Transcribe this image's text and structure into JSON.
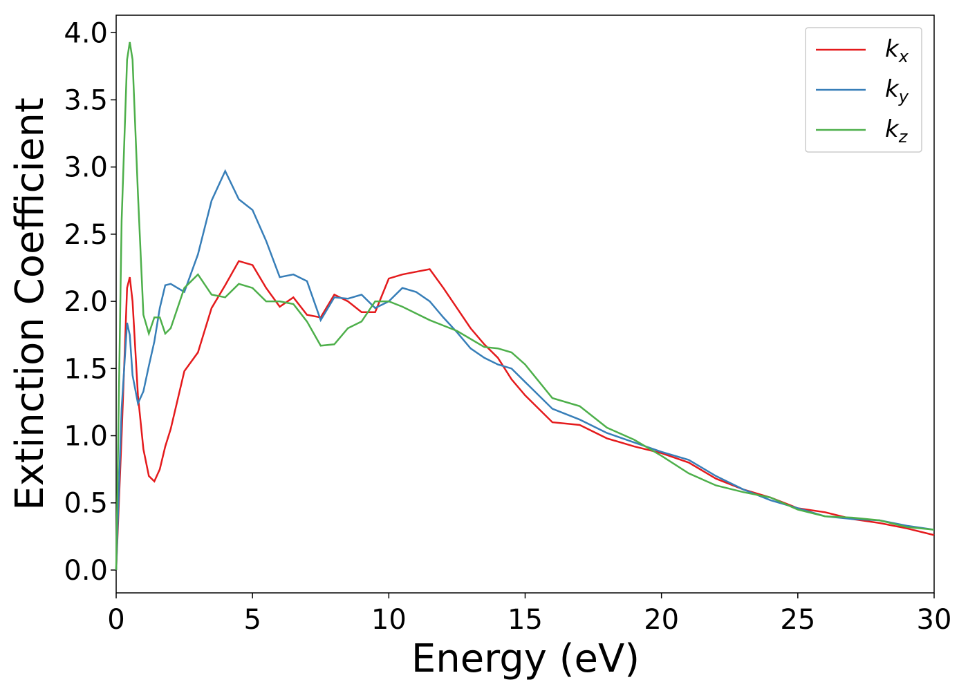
{
  "chart_data": {
    "type": "line",
    "xlabel": "Energy (eV)",
    "ylabel": "Extinction Coefficient",
    "x": [
      0,
      0.2,
      0.4,
      0.5,
      0.6,
      0.8,
      1,
      1.2,
      1.4,
      1.6,
      1.8,
      2,
      2.5,
      3,
      3.5,
      4,
      4.5,
      5,
      5.5,
      6,
      6.5,
      7,
      7.5,
      8,
      8.5,
      9,
      9.5,
      10,
      10.5,
      11,
      11.5,
      12,
      12.5,
      13,
      13.5,
      14,
      14.5,
      15,
      16,
      17,
      18,
      19,
      20,
      21,
      22,
      23,
      24,
      25,
      26,
      27,
      28,
      29,
      30
    ],
    "series": [
      {
        "name": "kx",
        "color": "#e41a1c",
        "values": [
          0,
          1.0,
          2.1,
          2.18,
          2.0,
          1.3,
          0.9,
          0.7,
          0.66,
          0.75,
          0.92,
          1.05,
          1.48,
          1.62,
          1.95,
          2.12,
          2.3,
          2.27,
          2.1,
          1.96,
          2.03,
          1.9,
          1.88,
          2.05,
          2.0,
          1.92,
          1.92,
          2.17,
          2.2,
          2.22,
          2.24,
          2.1,
          1.95,
          1.8,
          1.68,
          1.58,
          1.42,
          1.3,
          1.1,
          1.08,
          0.98,
          0.92,
          0.87,
          0.8,
          0.68,
          0.6,
          0.54,
          0.46,
          0.43,
          0.38,
          0.35,
          0.31,
          0.26
        ]
      },
      {
        "name": "ky",
        "color": "#377eb8",
        "values": [
          0,
          1.2,
          1.84,
          1.75,
          1.45,
          1.24,
          1.33,
          1.52,
          1.7,
          1.95,
          2.12,
          2.13,
          2.07,
          2.35,
          2.75,
          2.97,
          2.76,
          2.68,
          2.45,
          2.18,
          2.2,
          2.15,
          1.86,
          2.03,
          2.02,
          2.05,
          1.95,
          2.0,
          2.1,
          2.07,
          2.0,
          1.88,
          1.77,
          1.65,
          1.58,
          1.53,
          1.5,
          1.4,
          1.2,
          1.12,
          1.02,
          0.95,
          0.88,
          0.82,
          0.7,
          0.6,
          0.52,
          0.46,
          0.4,
          0.38,
          0.37,
          0.33,
          0.3
        ]
      },
      {
        "name": "kz",
        "color": "#4daf4a",
        "values": [
          0,
          2.6,
          3.8,
          3.93,
          3.8,
          2.8,
          1.9,
          1.76,
          1.88,
          1.88,
          1.76,
          1.8,
          2.1,
          2.2,
          2.05,
          2.03,
          2.13,
          2.1,
          2.0,
          2.0,
          1.98,
          1.85,
          1.67,
          1.68,
          1.8,
          1.85,
          2.0,
          2.0,
          1.96,
          1.91,
          1.86,
          1.82,
          1.78,
          1.72,
          1.66,
          1.65,
          1.62,
          1.53,
          1.28,
          1.22,
          1.06,
          0.97,
          0.85,
          0.72,
          0.63,
          0.58,
          0.54,
          0.45,
          0.4,
          0.39,
          0.37,
          0.32,
          0.3
        ]
      }
    ],
    "xlim": [
      0,
      30
    ],
    "xticks": [
      0,
      5,
      10,
      15,
      20,
      25,
      30
    ],
    "ylim": [
      -0.17,
      4.13
    ],
    "yticks": [
      {
        "value": 0,
        "label": "0.0"
      },
      {
        "value": 0.5,
        "label": "0.5"
      },
      {
        "value": 1,
        "label": "1.0"
      },
      {
        "value": 1.5,
        "label": "1.5"
      },
      {
        "value": 2,
        "label": "2.0"
      },
      {
        "value": 2.5,
        "label": "2.5"
      },
      {
        "value": 3,
        "label": "3.0"
      },
      {
        "value": 3.5,
        "label": "3.5"
      },
      {
        "value": 4,
        "label": "4.0"
      }
    ],
    "legend": "upper right",
    "grid": false
  }
}
